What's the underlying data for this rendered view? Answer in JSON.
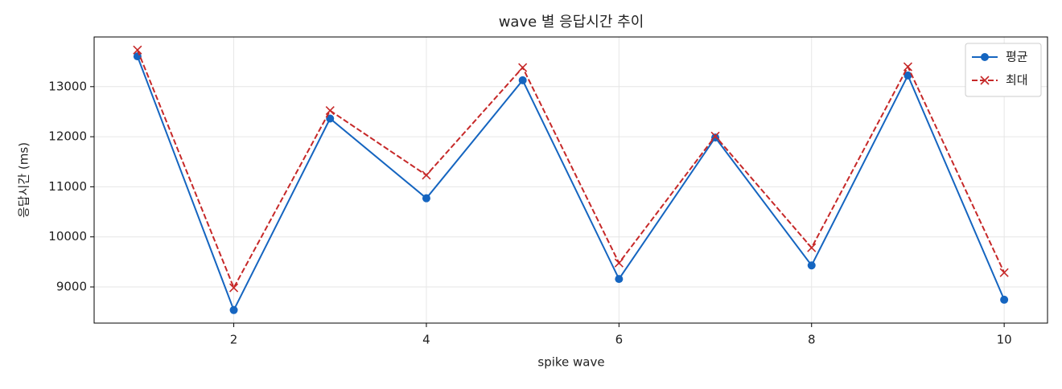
{
  "chart_data": {
    "type": "line",
    "title": "wave 별 응답시간 추이",
    "x_label": "spike wave",
    "y_label": "응답시간 (ms)",
    "x": [
      1,
      2,
      3,
      4,
      5,
      6,
      7,
      8,
      9,
      10
    ],
    "series": [
      {
        "name": "평균",
        "color": "#1565c0",
        "marker": "circle",
        "dash": "solid",
        "values": [
          13605,
          8538,
          12363,
          10771,
          13127,
          9159,
          11984,
          9430,
          13223,
          8745
        ]
      },
      {
        "name": "최대",
        "color": "#c62828",
        "marker": "x",
        "dash": "dashed",
        "values": [
          13732,
          8984,
          12522,
          11232,
          13382,
          9478,
          12013,
          9783,
          13398,
          9287
        ]
      }
    ],
    "xlim": [
      0.55,
      10.45
    ],
    "xticks": [
      2,
      4,
      6,
      8,
      10
    ],
    "ylim": [
      8278,
      13992
    ],
    "yticks": [
      9000,
      10000,
      11000,
      12000,
      13000
    ],
    "grid": true,
    "legend": "upper right"
  }
}
